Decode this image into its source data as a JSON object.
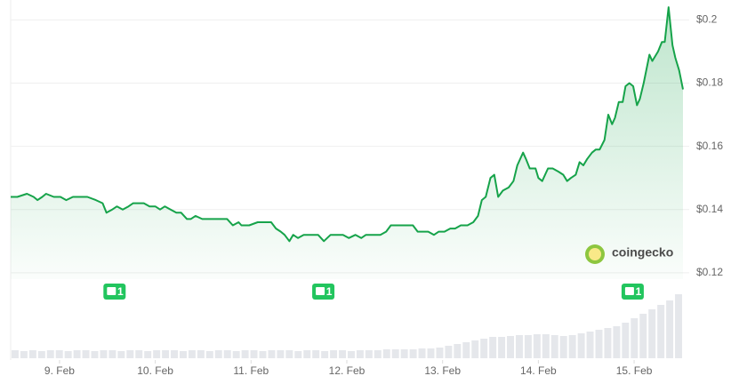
{
  "chart_data": {
    "type": "area",
    "xlim": [
      8.49,
      15.51
    ],
    "xticks": [
      {
        "value": 9,
        "label": "9. Feb"
      },
      {
        "value": 10,
        "label": "10. Feb"
      },
      {
        "value": 11,
        "label": "11. Feb"
      },
      {
        "value": 12,
        "label": "12. Feb"
      },
      {
        "value": 13,
        "label": "13. Feb"
      },
      {
        "value": 14,
        "label": "14. Feb"
      },
      {
        "value": 15,
        "label": "15. Feb"
      }
    ],
    "ylim": [
      0.118,
      0.206
    ],
    "yticks": [
      {
        "value": 0.12,
        "label": "$0.12"
      },
      {
        "value": 0.14,
        "label": "$0.14"
      },
      {
        "value": 0.16,
        "label": "$0.16"
      },
      {
        "value": 0.18,
        "label": "$0.18"
      },
      {
        "value": 0.2,
        "label": "$0.2"
      }
    ],
    "grid": true,
    "color": "#16a34a",
    "x": [
      8.49,
      8.56,
      8.66,
      8.73,
      8.77,
      8.82,
      8.86,
      8.94,
      9.01,
      9.07,
      9.14,
      9.21,
      9.29,
      9.38,
      9.45,
      9.49,
      9.55,
      9.6,
      9.66,
      9.72,
      9.77,
      9.83,
      9.88,
      9.94,
      10.0,
      10.05,
      10.1,
      10.16,
      10.22,
      10.27,
      10.33,
      10.37,
      10.42,
      10.49,
      10.57,
      10.64,
      10.7,
      10.75,
      10.81,
      10.87,
      10.9,
      10.98,
      11.07,
      11.14,
      11.21,
      11.26,
      11.31,
      11.35,
      11.4,
      11.44,
      11.49,
      11.55,
      11.63,
      11.7,
      11.76,
      11.83,
      11.91,
      11.96,
      12.02,
      12.09,
      12.15,
      12.2,
      12.28,
      12.35,
      12.41,
      12.46,
      12.52,
      12.57,
      12.63,
      12.69,
      12.74,
      12.8,
      12.85,
      12.91,
      12.96,
      13.02,
      13.08,
      13.13,
      13.19,
      13.26,
      13.32,
      13.37,
      13.41,
      13.45,
      13.5,
      13.54,
      13.58,
      13.63,
      13.69,
      13.74,
      13.78,
      13.84,
      13.87,
      13.91,
      13.97,
      14.0,
      14.04,
      14.1,
      14.15,
      14.21,
      14.26,
      14.3,
      14.34,
      14.39,
      14.43,
      14.47,
      14.51,
      14.56,
      14.6,
      14.64,
      14.69,
      14.73,
      14.77,
      14.8,
      14.84,
      14.88,
      14.91,
      14.95,
      14.99,
      15.03,
      15.06,
      15.1,
      15.16,
      15.19,
      15.25,
      15.29,
      15.32,
      15.36,
      15.4,
      15.43,
      15.47,
      15.51
    ],
    "values": [
      0.144,
      0.144,
      0.145,
      0.144,
      0.143,
      0.144,
      0.145,
      0.144,
      0.144,
      0.143,
      0.144,
      0.144,
      0.144,
      0.143,
      0.142,
      0.139,
      0.14,
      0.141,
      0.14,
      0.141,
      0.142,
      0.142,
      0.142,
      0.141,
      0.141,
      0.14,
      0.141,
      0.14,
      0.139,
      0.139,
      0.137,
      0.137,
      0.138,
      0.137,
      0.137,
      0.137,
      0.137,
      0.137,
      0.135,
      0.136,
      0.135,
      0.135,
      0.136,
      0.136,
      0.136,
      0.134,
      0.133,
      0.132,
      0.13,
      0.132,
      0.131,
      0.132,
      0.132,
      0.132,
      0.13,
      0.132,
      0.132,
      0.132,
      0.131,
      0.132,
      0.131,
      0.132,
      0.132,
      0.132,
      0.133,
      0.135,
      0.135,
      0.135,
      0.135,
      0.135,
      0.133,
      0.133,
      0.133,
      0.132,
      0.133,
      0.133,
      0.134,
      0.134,
      0.135,
      0.135,
      0.136,
      0.138,
      0.143,
      0.144,
      0.15,
      0.151,
      0.144,
      0.146,
      0.147,
      0.149,
      0.154,
      0.158,
      0.156,
      0.153,
      0.153,
      0.15,
      0.149,
      0.153,
      0.153,
      0.152,
      0.151,
      0.149,
      0.15,
      0.151,
      0.155,
      0.154,
      0.156,
      0.158,
      0.159,
      0.159,
      0.162,
      0.17,
      0.167,
      0.169,
      0.174,
      0.174,
      0.179,
      0.18,
      0.179,
      0.173,
      0.175,
      0.18,
      0.189,
      0.187,
      0.19,
      0.193,
      0.193,
      0.204,
      0.192,
      0.188,
      0.184,
      0.178
    ],
    "volume": {
      "color": "#e5e7eb",
      "y2lim": [
        0,
        80
      ],
      "values": [
        9,
        8,
        9,
        8,
        9,
        9,
        8,
        9,
        9,
        8,
        9,
        9,
        8,
        9,
        9,
        8,
        9,
        9,
        9,
        8,
        9,
        9,
        8,
        9,
        9,
        8,
        9,
        9,
        8,
        9,
        9,
        9,
        8,
        9,
        9,
        8,
        9,
        9,
        8,
        9,
        9,
        9,
        10,
        10,
        10,
        10,
        11,
        11,
        12,
        14,
        16,
        18,
        20,
        22,
        24,
        24,
        25,
        26,
        26,
        27,
        27,
        26,
        25,
        26,
        28,
        30,
        32,
        34,
        36,
        40,
        45,
        50,
        55,
        60,
        65,
        72
      ]
    },
    "events": [
      {
        "x": 9.57,
        "count": 1
      },
      {
        "x": 11.75,
        "count": 1
      },
      {
        "x": 14.98,
        "count": 1
      }
    ],
    "watermark": "coingecko"
  }
}
